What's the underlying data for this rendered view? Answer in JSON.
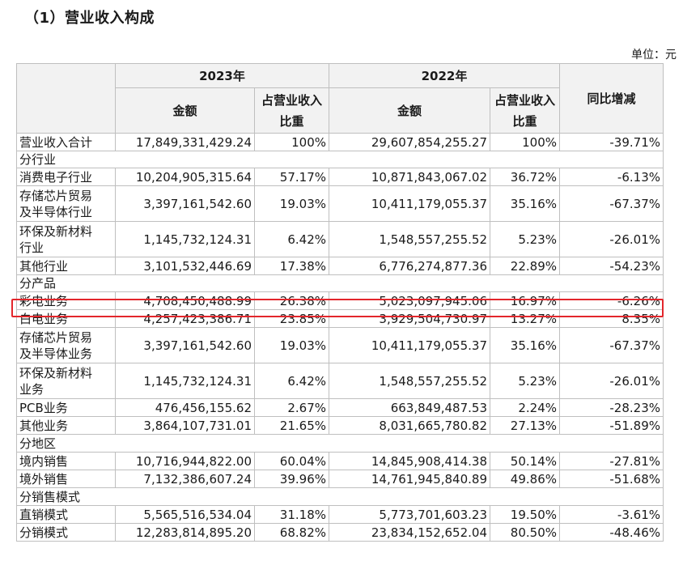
{
  "heading": "（1）营业收入构成",
  "unit": "单位：元",
  "columns": {
    "year_2023": "2023年",
    "year_2022": "2022年",
    "amount": "金额",
    "share_line1": "占营业收入",
    "share_line2": "比重",
    "yoy": "同比增减"
  },
  "rows": [
    {
      "type": "data",
      "label": "营业收入合计",
      "a2023": "17,849,331,429.24",
      "s2023": "100%",
      "a2022": "29,607,854,255.27",
      "s2022": "100%",
      "yoy": "-39.71%"
    },
    {
      "type": "cat",
      "label": "分行业"
    },
    {
      "type": "data",
      "label": "消费电子行业",
      "a2023": "10,204,905,315.64",
      "s2023": "57.17%",
      "a2022": "10,871,843,067.02",
      "s2022": "36.72%",
      "yoy": "-6.13%"
    },
    {
      "type": "data",
      "label": "存储芯片贸易及半导体行业",
      "label_l1": "存储芯片贸易",
      "label_l2": "及半导体行业",
      "a2023": "3,397,161,542.60",
      "s2023": "19.03%",
      "a2022": "10,411,179,055.37",
      "s2022": "35.16%",
      "yoy": "-67.37%"
    },
    {
      "type": "data",
      "label": "环保及新材料行业",
      "label_l1": "环保及新材料",
      "label_l2": "行业",
      "a2023": "1,145,732,124.31",
      "s2023": "6.42%",
      "a2022": "1,548,557,255.52",
      "s2022": "5.23%",
      "yoy": "-26.01%"
    },
    {
      "type": "data",
      "label": "其他行业",
      "a2023": "3,101,532,446.69",
      "s2023": "17.38%",
      "a2022": "6,776,274,877.36",
      "s2022": "22.89%",
      "yoy": "-54.23%"
    },
    {
      "type": "cat",
      "label": "分产品"
    },
    {
      "type": "data",
      "label": "彩电业务",
      "a2023": "4,708,450,488.99",
      "s2023": "26.38%",
      "a2022": "5,023,097,945.06",
      "s2022": "16.97%",
      "yoy": "-6.26%",
      "highlight": true
    },
    {
      "type": "data",
      "label": "白电业务",
      "a2023": "4,257,423,386.71",
      "s2023": "23.85%",
      "a2022": "3,929,504,730.97",
      "s2022": "13.27%",
      "yoy": "8.35%"
    },
    {
      "type": "data",
      "label": "存储芯片贸易及半导体业务",
      "label_l1": "存储芯片贸易",
      "label_l2": "及半导体业务",
      "a2023": "3,397,161,542.60",
      "s2023": "19.03%",
      "a2022": "10,411,179,055.37",
      "s2022": "35.16%",
      "yoy": "-67.37%"
    },
    {
      "type": "data",
      "label": "环保及新材料业务",
      "label_l1": "环保及新材料",
      "label_l2": "业务",
      "a2023": "1,145,732,124.31",
      "s2023": "6.42%",
      "a2022": "1,548,557,255.52",
      "s2022": "5.23%",
      "yoy": "-26.01%"
    },
    {
      "type": "data",
      "label": "PCB业务",
      "a2023": "476,456,155.62",
      "s2023": "2.67%",
      "a2022": "663,849,487.53",
      "s2022": "2.24%",
      "yoy": "-28.23%"
    },
    {
      "type": "data",
      "label": "其他业务",
      "a2023": "3,864,107,731.01",
      "s2023": "21.65%",
      "a2022": "8,031,665,780.82",
      "s2022": "27.13%",
      "yoy": "-51.89%"
    },
    {
      "type": "cat",
      "label": "分地区"
    },
    {
      "type": "data",
      "label": "境内销售",
      "a2023": "10,716,944,822.00",
      "s2023": "60.04%",
      "a2022": "14,845,908,414.38",
      "s2022": "50.14%",
      "yoy": "-27.81%"
    },
    {
      "type": "data",
      "label": "境外销售",
      "a2023": "7,132,386,607.24",
      "s2023": "39.96%",
      "a2022": "14,761,945,840.89",
      "s2022": "49.86%",
      "yoy": "-51.68%"
    },
    {
      "type": "cat",
      "label": "分销售模式"
    },
    {
      "type": "data",
      "label": "直销模式",
      "a2023": "5,565,516,534.04",
      "s2023": "31.18%",
      "a2022": "5,773,701,603.23",
      "s2022": "19.50%",
      "yoy": "-3.61%"
    },
    {
      "type": "data",
      "label": "分销模式",
      "a2023": "12,283,814,895.20",
      "s2023": "68.82%",
      "a2022": "23,834,152,652.04",
      "s2022": "80.50%",
      "yoy": "-48.46%"
    }
  ],
  "highlight_color": "#e3262b"
}
